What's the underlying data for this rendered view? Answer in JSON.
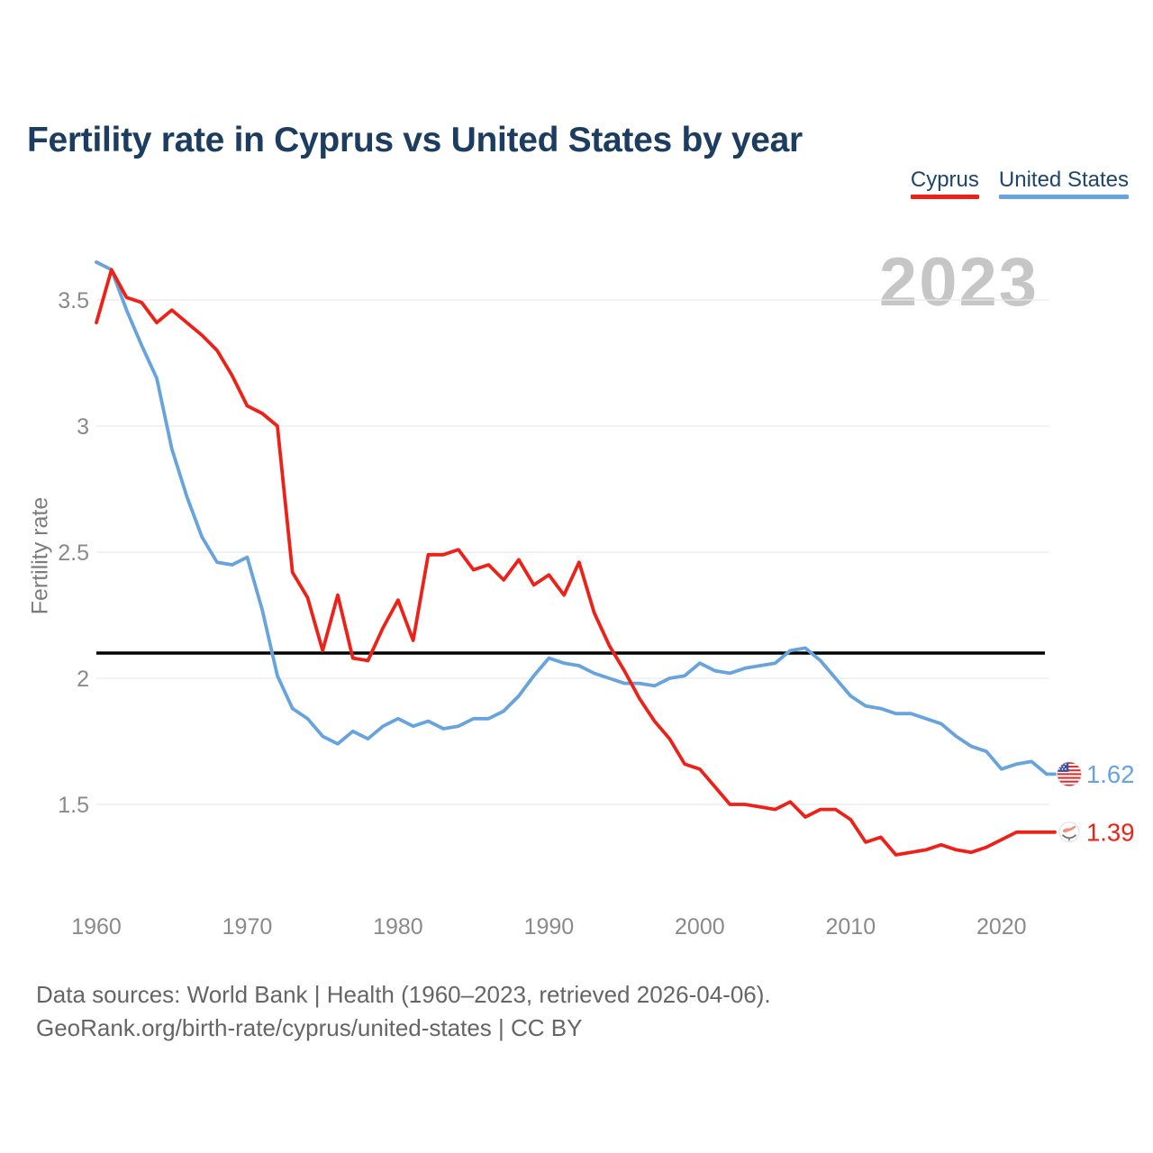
{
  "header": {
    "title": "Fertility rate in Cyprus vs United States by year"
  },
  "watermark": "2023",
  "chart_data": {
    "type": "line",
    "title": "Fertility rate in Cyprus vs United States by year",
    "xlabel": "",
    "ylabel": "Fertility rate",
    "grid": "horizontal",
    "xlim": [
      1960,
      2023
    ],
    "ylim": [
      1.25,
      3.7
    ],
    "x_ticks": [
      1960,
      1970,
      1980,
      1990,
      2000,
      2010,
      2020
    ],
    "y_ticks": [
      3.5,
      3,
      2.5,
      2,
      1.5
    ],
    "reference_line": {
      "value": 2.1,
      "color": "#000000"
    },
    "x": [
      1960,
      1961,
      1962,
      1963,
      1964,
      1965,
      1966,
      1967,
      1968,
      1969,
      1970,
      1971,
      1972,
      1973,
      1974,
      1975,
      1976,
      1977,
      1978,
      1979,
      1980,
      1981,
      1982,
      1983,
      1984,
      1985,
      1986,
      1987,
      1988,
      1989,
      1990,
      1991,
      1992,
      1993,
      1994,
      1995,
      1996,
      1997,
      1998,
      1999,
      2000,
      2001,
      2002,
      2003,
      2004,
      2005,
      2006,
      2007,
      2008,
      2009,
      2010,
      2011,
      2012,
      2013,
      2014,
      2015,
      2016,
      2017,
      2018,
      2019,
      2020,
      2021,
      2022,
      2023
    ],
    "series": [
      {
        "name": "Cyprus",
        "color": "#ee2119",
        "values": [
          3.41,
          3.62,
          3.51,
          3.49,
          3.41,
          3.46,
          3.41,
          3.36,
          3.3,
          3.2,
          3.08,
          3.05,
          3.0,
          2.42,
          2.32,
          2.11,
          2.33,
          2.08,
          2.07,
          2.2,
          2.31,
          2.15,
          2.49,
          2.49,
          2.51,
          2.43,
          2.45,
          2.39,
          2.47,
          2.37,
          2.41,
          2.33,
          2.46,
          2.26,
          2.13,
          2.03,
          1.92,
          1.83,
          1.76,
          1.66,
          1.64,
          1.57,
          1.5,
          1.5,
          1.49,
          1.48,
          1.51,
          1.45,
          1.48,
          1.48,
          1.44,
          1.35,
          1.37,
          1.3,
          1.31,
          1.32,
          1.34,
          1.32,
          1.31,
          1.33,
          1.36,
          1.39,
          1.39,
          1.39
        ]
      },
      {
        "name": "United States",
        "color": "#67a3dc",
        "values": [
          3.65,
          3.62,
          3.46,
          3.32,
          3.19,
          2.91,
          2.72,
          2.56,
          2.46,
          2.45,
          2.48,
          2.27,
          2.01,
          1.88,
          1.84,
          1.77,
          1.74,
          1.79,
          1.76,
          1.81,
          1.84,
          1.81,
          1.83,
          1.8,
          1.81,
          1.84,
          1.84,
          1.87,
          1.93,
          2.01,
          2.08,
          2.06,
          2.05,
          2.02,
          2.0,
          1.98,
          1.98,
          1.97,
          2.0,
          2.01,
          2.06,
          2.03,
          2.02,
          2.04,
          2.05,
          2.06,
          2.11,
          2.12,
          2.07,
          2.0,
          1.93,
          1.89,
          1.88,
          1.86,
          1.86,
          1.84,
          1.82,
          1.77,
          1.73,
          1.71,
          1.64,
          1.66,
          1.67,
          1.62
        ]
      }
    ]
  },
  "end_labels": [
    {
      "series": "United States",
      "value": "1.62",
      "flag": "us-flag-icon"
    },
    {
      "series": "Cyprus",
      "value": "1.39",
      "flag": "cyprus-flag-icon"
    }
  ],
  "footer": {
    "line1": "Data sources: World Bank | Health (1960–2023, retrieved 2026-04-06).",
    "line2": "GeoRank.org/birth-rate/cyprus/united-states | CC BY"
  }
}
